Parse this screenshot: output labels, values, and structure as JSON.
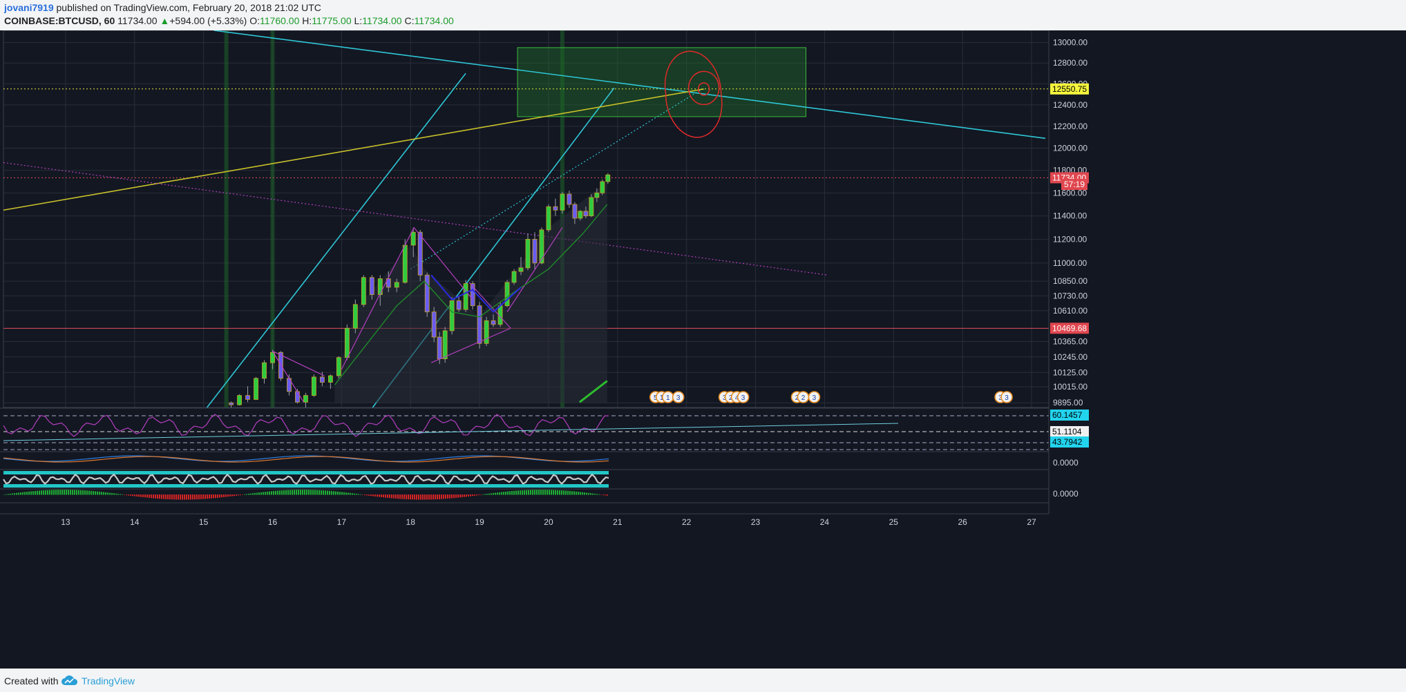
{
  "header": {
    "author": "jovani7919",
    "published_text": "published on TradingView.com, February 20, 2018 21:02 UTC",
    "symbol": "COINBASE:BTCUSD, 60",
    "last": "11734.00",
    "change_arrow": "▲",
    "change": "+594.00 (+5.33%)",
    "o_label": "O:",
    "o_value": "11760.00",
    "h_label": "H:",
    "h_value": "11775.00",
    "l_label": "L:",
    "l_value": "11734.00",
    "c_label": "C:",
    "c_value": "11734.00"
  },
  "footer": {
    "created_with": "Created with",
    "brand": "TradingView",
    "logo_icon": "tradingview-cloud-icon"
  },
  "colors": {
    "background": "#131722",
    "grid": "#2a2e39",
    "candle_up": "#2ecc40",
    "candle_down": "#6a5cf0",
    "trend_cyan": "#2ec7d6",
    "trend_yellow": "#c9c22a",
    "trend_magenta": "#b43fbf",
    "red_line": "#e0525a",
    "zone_green": "#1f6b2a",
    "tag_red": "#e0474f",
    "tag_yellow": "#f5f53d",
    "tag_cyan": "#22d3ee"
  },
  "chart_data": {
    "type": "candlestick",
    "x_tick_labels": [
      "13",
      "14",
      "15",
      "16",
      "17",
      "18",
      "19",
      "20",
      "21",
      "22",
      "23",
      "24",
      "25",
      "26",
      "27"
    ],
    "x_ticks": [
      13,
      14,
      15,
      16,
      17,
      18,
      19,
      20,
      21,
      22,
      23,
      24,
      25,
      26,
      27
    ],
    "x_range": [
      12.1,
      27.25
    ],
    "y_tick_labels": [
      "13000.00",
      "12800.00",
      "12600.00",
      "12400.00",
      "12200.00",
      "12000.00",
      "11800.00",
      "11600.00",
      "11400.00",
      "11200.00",
      "11000.00",
      "10850.00",
      "10730.00",
      "10610.00",
      "10365.00",
      "10245.00",
      "10125.00",
      "10015.00",
      "9895.00"
    ],
    "y_ticks": [
      13000,
      12800,
      12600,
      12400,
      12200,
      12000,
      11800,
      11600,
      11400,
      11200,
      11000,
      10850,
      10730,
      10610,
      10365,
      10245,
      10125,
      10015,
      9895
    ],
    "y_range": [
      9860,
      13120
    ],
    "y_scale": "log",
    "price_tags": [
      {
        "label": "12550.75",
        "value": 12550.75,
        "style": "yellow"
      },
      {
        "label": "11734.00",
        "value": 11734,
        "style": "red"
      },
      {
        "label": "57:19",
        "value": 11675,
        "style": "red_small"
      },
      {
        "label": "10469.68",
        "value": 10469.68,
        "style": "red"
      }
    ],
    "horizontal_lines": [
      {
        "value": 12550.75,
        "color": "yellow",
        "style": "dotted"
      },
      {
        "value": 11734,
        "color": "red",
        "style": "dotted"
      },
      {
        "value": 10469.68,
        "color": "red",
        "style": "solid"
      }
    ],
    "trendlines": [
      {
        "color": "cyan",
        "points": [
          [
            15.15,
            13120
          ],
          [
            27.2,
            12090
          ]
        ]
      },
      {
        "color": "cyan",
        "points": [
          [
            15.05,
            9860
          ],
          [
            18.8,
            12700
          ]
        ]
      },
      {
        "color": "cyan",
        "points": [
          [
            17.45,
            9860
          ],
          [
            20.95,
            12560
          ]
        ]
      },
      {
        "color": "cyan",
        "style": "dotted",
        "points": [
          [
            18.0,
            10950
          ],
          [
            22.25,
            12560
          ]
        ]
      },
      {
        "color": "yellow",
        "points": [
          [
            12.1,
            11450
          ],
          [
            22.25,
            12550
          ]
        ]
      },
      {
        "color": "magenta",
        "style": "dotted",
        "points": [
          [
            12.1,
            11870
          ],
          [
            24.05,
            10900
          ]
        ]
      }
    ],
    "zones": [
      {
        "color": "green",
        "x": [
          19.55,
          23.73
        ],
        "y": [
          12290,
          12950
        ]
      }
    ],
    "vertical_highlights": [
      15.33,
      16.0,
      20.2
    ],
    "candles": [
      {
        "x": 15.4,
        "o": 9895,
        "h": 9905,
        "l": 9860,
        "c": 9880
      },
      {
        "x": 15.52,
        "o": 9880,
        "h": 9960,
        "l": 9875,
        "c": 9950
      },
      {
        "x": 15.64,
        "o": 9950,
        "h": 10020,
        "l": 9900,
        "c": 9920
      },
      {
        "x": 15.76,
        "o": 9920,
        "h": 10090,
        "l": 9915,
        "c": 10080
      },
      {
        "x": 15.88,
        "o": 10080,
        "h": 10220,
        "l": 10040,
        "c": 10200
      },
      {
        "x": 16.0,
        "o": 10200,
        "h": 10300,
        "l": 10150,
        "c": 10280
      },
      {
        "x": 16.12,
        "o": 10280,
        "h": 10290,
        "l": 10060,
        "c": 10080
      },
      {
        "x": 16.24,
        "o": 10080,
        "h": 10110,
        "l": 9950,
        "c": 9980
      },
      {
        "x": 16.36,
        "o": 9980,
        "h": 10000,
        "l": 9890,
        "c": 9900
      },
      {
        "x": 16.48,
        "o": 9900,
        "h": 9970,
        "l": 9860,
        "c": 9950
      },
      {
        "x": 16.6,
        "o": 9950,
        "h": 10110,
        "l": 9940,
        "c": 10090
      },
      {
        "x": 16.72,
        "o": 10090,
        "h": 10130,
        "l": 10020,
        "c": 10050
      },
      {
        "x": 16.84,
        "o": 10050,
        "h": 10110,
        "l": 10000,
        "c": 10100
      },
      {
        "x": 16.96,
        "o": 10100,
        "h": 10250,
        "l": 10080,
        "c": 10240
      },
      {
        "x": 17.08,
        "o": 10240,
        "h": 10500,
        "l": 10220,
        "c": 10470
      },
      {
        "x": 17.2,
        "o": 10470,
        "h": 10700,
        "l": 10430,
        "c": 10660
      },
      {
        "x": 17.32,
        "o": 10660,
        "h": 10900,
        "l": 10640,
        "c": 10880
      },
      {
        "x": 17.44,
        "o": 10880,
        "h": 10900,
        "l": 10700,
        "c": 10740
      },
      {
        "x": 17.56,
        "o": 10740,
        "h": 10900,
        "l": 10650,
        "c": 10870
      },
      {
        "x": 17.68,
        "o": 10870,
        "h": 10930,
        "l": 10760,
        "c": 10800
      },
      {
        "x": 17.8,
        "o": 10800,
        "h": 10870,
        "l": 10760,
        "c": 10840
      },
      {
        "x": 17.92,
        "o": 10840,
        "h": 11200,
        "l": 10830,
        "c": 11150
      },
      {
        "x": 18.04,
        "o": 11150,
        "h": 11300,
        "l": 11050,
        "c": 11260
      },
      {
        "x": 18.14,
        "o": 11260,
        "h": 11280,
        "l": 10850,
        "c": 10900
      },
      {
        "x": 18.24,
        "o": 10900,
        "h": 10920,
        "l": 10560,
        "c": 10600
      },
      {
        "x": 18.34,
        "o": 10600,
        "h": 10640,
        "l": 10360,
        "c": 10400
      },
      {
        "x": 18.42,
        "o": 10400,
        "h": 10440,
        "l": 10190,
        "c": 10230
      },
      {
        "x": 18.5,
        "o": 10230,
        "h": 10480,
        "l": 10200,
        "c": 10450
      },
      {
        "x": 18.6,
        "o": 10450,
        "h": 10720,
        "l": 10420,
        "c": 10690
      },
      {
        "x": 18.7,
        "o": 10690,
        "h": 10730,
        "l": 10600,
        "c": 10620
      },
      {
        "x": 18.8,
        "o": 10620,
        "h": 10860,
        "l": 10600,
        "c": 10830
      },
      {
        "x": 18.9,
        "o": 10830,
        "h": 10850,
        "l": 10620,
        "c": 10650
      },
      {
        "x": 19.0,
        "o": 10650,
        "h": 10680,
        "l": 10310,
        "c": 10350
      },
      {
        "x": 19.1,
        "o": 10350,
        "h": 10560,
        "l": 10330,
        "c": 10530
      },
      {
        "x": 19.2,
        "o": 10530,
        "h": 10580,
        "l": 10480,
        "c": 10500
      },
      {
        "x": 19.3,
        "o": 10500,
        "h": 10680,
        "l": 10480,
        "c": 10650
      },
      {
        "x": 19.4,
        "o": 10650,
        "h": 10860,
        "l": 10640,
        "c": 10840
      },
      {
        "x": 19.5,
        "o": 10840,
        "h": 10950,
        "l": 10820,
        "c": 10930
      },
      {
        "x": 19.6,
        "o": 10930,
        "h": 11050,
        "l": 10900,
        "c": 10960
      },
      {
        "x": 19.7,
        "o": 10960,
        "h": 11250,
        "l": 10940,
        "c": 11200
      },
      {
        "x": 19.8,
        "o": 11200,
        "h": 11260,
        "l": 10950,
        "c": 11000
      },
      {
        "x": 19.9,
        "o": 11000,
        "h": 11300,
        "l": 10990,
        "c": 11280
      },
      {
        "x": 20.0,
        "o": 11280,
        "h": 11500,
        "l": 11260,
        "c": 11480
      },
      {
        "x": 20.1,
        "o": 11480,
        "h": 11550,
        "l": 11400,
        "c": 11450
      },
      {
        "x": 20.2,
        "o": 11450,
        "h": 11610,
        "l": 11420,
        "c": 11590
      },
      {
        "x": 20.3,
        "o": 11590,
        "h": 11620,
        "l": 11470,
        "c": 11500
      },
      {
        "x": 20.38,
        "o": 11500,
        "h": 11520,
        "l": 11330,
        "c": 11380
      },
      {
        "x": 20.46,
        "o": 11380,
        "h": 11450,
        "l": 11360,
        "c": 11440
      },
      {
        "x": 20.54,
        "o": 11440,
        "h": 11480,
        "l": 11380,
        "c": 11400
      },
      {
        "x": 20.62,
        "o": 11400,
        "h": 11590,
        "l": 11390,
        "c": 11560
      },
      {
        "x": 20.7,
        "o": 11560,
        "h": 11640,
        "l": 11520,
        "c": 11600
      },
      {
        "x": 20.78,
        "o": 11600,
        "h": 11720,
        "l": 11580,
        "c": 11700
      },
      {
        "x": 20.86,
        "o": 11700,
        "h": 11775,
        "l": 11680,
        "c": 11760
      }
    ],
    "event_markers": [
      {
        "x": 21.55,
        "labels": [
          "5",
          "1",
          "1"
        ]
      },
      {
        "x": 21.88,
        "labels": [
          "3"
        ]
      },
      {
        "x": 22.55,
        "labels": [
          "3",
          "2",
          "4"
        ]
      },
      {
        "x": 22.82,
        "labels": [
          "3"
        ]
      },
      {
        "x": 23.6,
        "labels": [
          "2",
          "2"
        ]
      },
      {
        "x": 23.85,
        "labels": [
          "3"
        ]
      },
      {
        "x": 26.55,
        "labels": [
          "3",
          "3"
        ]
      }
    ],
    "rsi_panel": {
      "tags": [
        {
          "label": "60.1457",
          "style": "cyan"
        },
        {
          "label": "51.1104",
          "style": "white"
        },
        {
          "label": "43.7942",
          "style": "cyan"
        }
      ]
    },
    "macd_panel": {
      "tags": [
        {
          "label": "0.0000"
        }
      ]
    },
    "stoch_panel": {},
    "histogram_panel": {
      "tags": [
        {
          "label": "0.0000"
        }
      ]
    }
  }
}
